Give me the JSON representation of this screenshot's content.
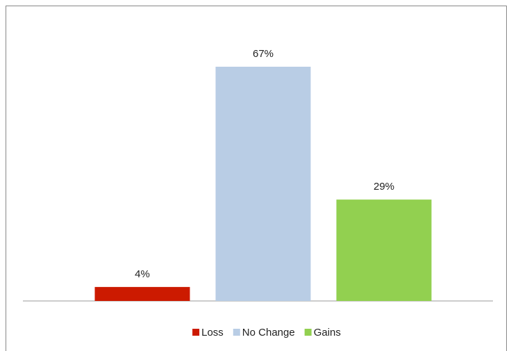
{
  "chart_data": {
    "type": "bar",
    "categories": [
      null
    ],
    "series": [
      {
        "name": "Loss",
        "color": "#cc1a00",
        "values": [
          4
        ],
        "value_labels": [
          "4%"
        ]
      },
      {
        "name": "No Change",
        "color": "#b9cde5",
        "values": [
          67
        ],
        "value_labels": [
          "67%"
        ]
      },
      {
        "name": "Gains",
        "color": "#92d050",
        "values": [
          29
        ],
        "value_labels": [
          "29%"
        ]
      }
    ],
    "legend": "bottom"
  }
}
